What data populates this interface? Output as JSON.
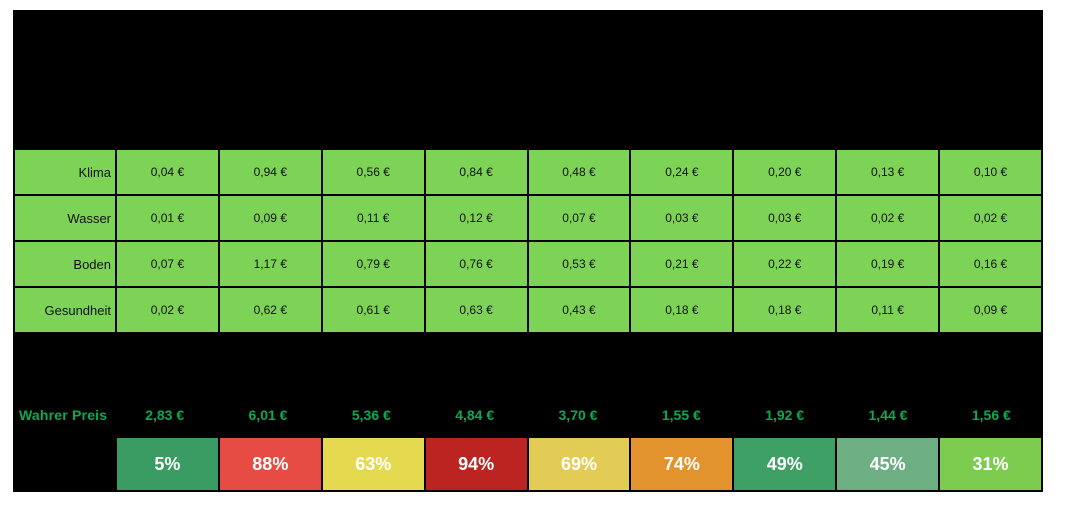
{
  "table": {
    "rows": [
      {
        "label": "Klima",
        "values": [
          "0,04 €",
          "0,94 €",
          "0,56 €",
          "0,84 €",
          "0,48 €",
          "0,24 €",
          "0,20 €",
          "0,13 €",
          "0,10 €"
        ]
      },
      {
        "label": "Wasser",
        "values": [
          "0,01 €",
          "0,09 €",
          "0,11 €",
          "0,12 €",
          "0,07 €",
          "0,03 €",
          "0,03 €",
          "0,02 €",
          "0,02 €"
        ]
      },
      {
        "label": "Boden",
        "values": [
          "0,07 €",
          "1,17 €",
          "0,79 €",
          "0,76 €",
          "0,53 €",
          "0,21 €",
          "0,22 €",
          "0,19 €",
          "0,16 €"
        ]
      },
      {
        "label": "Gesundheit",
        "values": [
          "0,02 €",
          "0,62 €",
          "0,61 €",
          "0,63 €",
          "0,43 €",
          "0,18 €",
          "0,18 €",
          "0,11 €",
          "0,09 €"
        ]
      }
    ]
  },
  "true_price": {
    "label": "Wahrer Preis",
    "values": [
      "2,83 €",
      "6,01 €",
      "5,36 €",
      "4,84 €",
      "3,70 €",
      "1,55 €",
      "1,92 €",
      "1,44 €",
      "1,56 €"
    ],
    "text_color": "#0ca853"
  },
  "surcharge": {
    "values": [
      "5%",
      "88%",
      "63%",
      "94%",
      "69%",
      "74%",
      "49%",
      "45%",
      "31%"
    ],
    "cell_colors": [
      "#3a9c63",
      "#e64c44",
      "#e5da4f",
      "#bb2420",
      "#e3cc55",
      "#e2932d",
      "#3fa065",
      "#6dae83",
      "#7dcc50"
    ],
    "text_color": "#ffffff"
  },
  "colors": {
    "table_green": "#7dd355",
    "background_black": "#000000",
    "page_white": "#ffffff"
  },
  "chart_data": {
    "type": "table",
    "num_columns": 9,
    "column_headers_visible": false,
    "currency": "EUR",
    "rows": [
      {
        "label": "Klima",
        "values_eur": [
          0.04,
          0.94,
          0.56,
          0.84,
          0.48,
          0.24,
          0.2,
          0.13,
          0.1
        ]
      },
      {
        "label": "Wasser",
        "values_eur": [
          0.01,
          0.09,
          0.11,
          0.12,
          0.07,
          0.03,
          0.03,
          0.02,
          0.02
        ]
      },
      {
        "label": "Boden",
        "values_eur": [
          0.07,
          1.17,
          0.79,
          0.76,
          0.53,
          0.21,
          0.22,
          0.19,
          0.16
        ]
      },
      {
        "label": "Gesundheit",
        "values_eur": [
          0.02,
          0.62,
          0.61,
          0.63,
          0.43,
          0.18,
          0.18,
          0.11,
          0.09
        ]
      },
      {
        "label": "Wahrer Preis",
        "values_eur": [
          2.83,
          6.01,
          5.36,
          4.84,
          3.7,
          1.55,
          1.92,
          1.44,
          1.56
        ]
      },
      {
        "label": "",
        "values_pct": [
          5,
          88,
          63,
          94,
          69,
          74,
          49,
          45,
          31
        ]
      }
    ]
  }
}
